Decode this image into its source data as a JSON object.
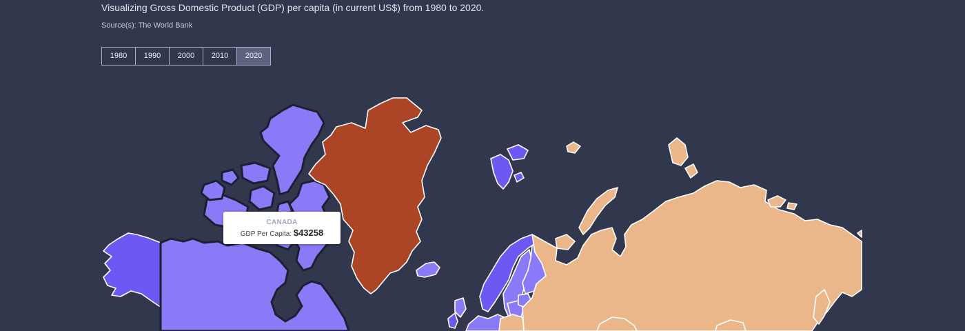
{
  "header": {
    "subtitle": "Visualizing Gross Domestic Product (GDP) per capita (in current US$) from 1980 to 2020.",
    "source": "Source(s): The World Bank"
  },
  "year_tabs": {
    "items": [
      "1980",
      "1990",
      "2000",
      "2010",
      "2020"
    ],
    "active": "2020"
  },
  "tooltip": {
    "country": "CANADA",
    "label": "GDP Per Capita:",
    "value": "$43258"
  },
  "map_colors": {
    "background": "#31374d",
    "light_purple": "#8a7af7",
    "mid_purple": "#6c58f2",
    "dark_purple": "#5b47ea",
    "rust": "#ab4525",
    "peach": "#ebb68a",
    "border": "#ffffff",
    "hover_border": "#1c2033"
  },
  "regions": [
    {
      "name": "Canada",
      "color": "light_purple",
      "hovered": true
    },
    {
      "name": "Alaska (United States)",
      "color": "mid_purple"
    },
    {
      "name": "Greenland",
      "color": "rust"
    },
    {
      "name": "Iceland",
      "color": "light_purple"
    },
    {
      "name": "Svalbard",
      "color": "mid_purple"
    },
    {
      "name": "Norway",
      "color": "mid_purple"
    },
    {
      "name": "Sweden",
      "color": "light_purple"
    },
    {
      "name": "Finland",
      "color": "light_purple"
    },
    {
      "name": "Russia",
      "color": "peach"
    },
    {
      "name": "Europe",
      "color": "light_purple"
    }
  ]
}
